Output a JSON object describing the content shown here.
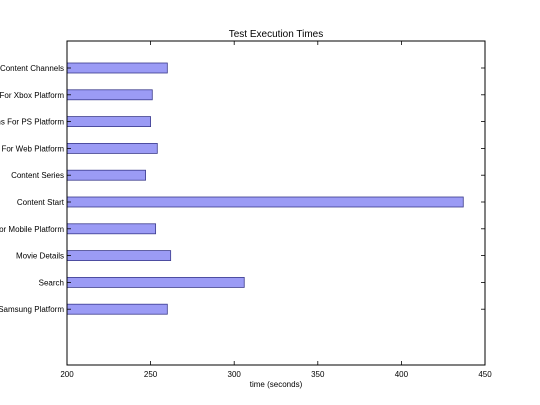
{
  "chart_data": {
    "type": "bar",
    "orientation": "horizontal",
    "title": "Test Execution Times",
    "xlabel": "time (seconds)",
    "ylabel": "",
    "xlim": [
      200,
      450
    ],
    "x_ticks": [
      200,
      250,
      300,
      350,
      400,
      450
    ],
    "grid": false,
    "bar_color": "#9b9bf5",
    "bar_edge_color": "#3a3a8c",
    "categories": [
      "Content Channels",
      "s For Xbox Platform",
      "ns For PS Platform",
      "s For Web Platform",
      "Content Series",
      "Content Start",
      "For Mobile Platform",
      "Movie Details",
      "Search",
      "Samsung Platform"
    ],
    "values": [
      260,
      251,
      250,
      254,
      247,
      437,
      253,
      262,
      306,
      260
    ]
  }
}
